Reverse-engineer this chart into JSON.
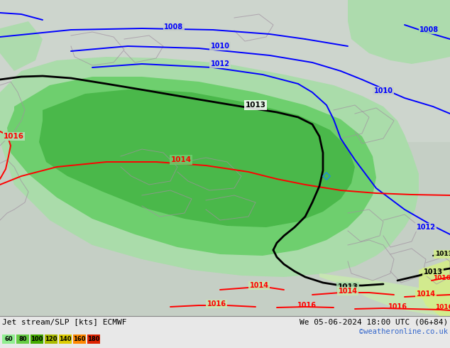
{
  "title_left": "Jet stream/SLP [kts] ECMWF",
  "title_right": "We 05-06-2024 18:00 UTC (06+84)",
  "credit": "©weatheronline.co.uk",
  "legend_labels": [
    "60",
    "80",
    "100",
    "120",
    "140",
    "160",
    "180"
  ],
  "legend_colors": [
    "#90ee90",
    "#66cc66",
    "#00cc00",
    "#99cc00",
    "#ffcc00",
    "#ff6600",
    "#cc0000"
  ],
  "fig_width": 6.34,
  "fig_height": 4.9,
  "dpi": 100,
  "map_bg": "#c8d8c8",
  "light_green": "#b8e8b8",
  "mid_green": "#78d878",
  "dark_green": "#44bb44",
  "yellow_green": "#c8e870",
  "light_cyan_bg": "#b8e0d0"
}
